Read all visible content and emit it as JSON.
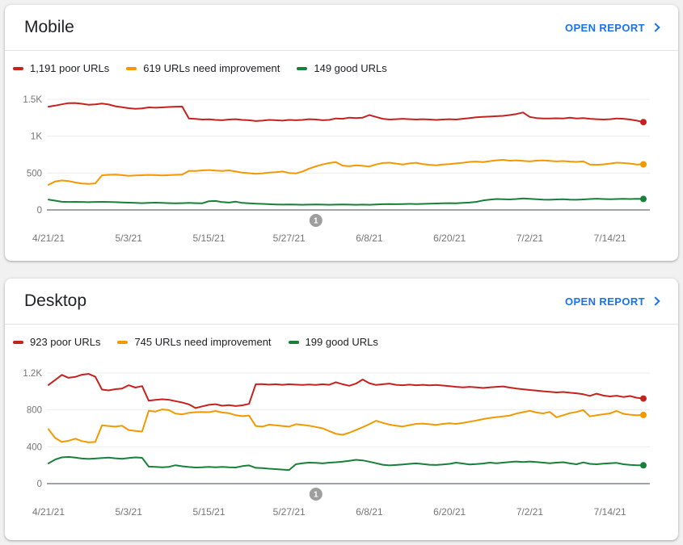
{
  "page": {
    "background": "#f1f1f1"
  },
  "cards": [
    {
      "title": "Mobile",
      "open_report_label": "OPEN REPORT",
      "legend": [
        {
          "label": "1,191 poor URLs",
          "color": "#c5221f"
        },
        {
          "label": "619 URLs need improvement",
          "color": "#f29900"
        },
        {
          "label": "149 good URLs",
          "color": "#188038"
        }
      ]
    },
    {
      "title": "Desktop",
      "open_report_label": "OPEN REPORT",
      "legend": [
        {
          "label": "923 poor URLs",
          "color": "#c5221f"
        },
        {
          "label": "745 URLs need improvement",
          "color": "#f29900"
        },
        {
          "label": "199 good URLs",
          "color": "#188038"
        }
      ]
    }
  ],
  "chart_data": [
    {
      "type": "line",
      "title": "Mobile",
      "x_tick_labels": [
        "4/21/21",
        "5/3/21",
        "5/15/21",
        "5/27/21",
        "6/8/21",
        "6/20/21",
        "7/2/21",
        "7/14/21"
      ],
      "x_tick_day_index": [
        0,
        12,
        24,
        36,
        48,
        60,
        72,
        84
      ],
      "y_tick_labels": [
        "0",
        "500",
        "1K",
        "1.5K"
      ],
      "yticks": [
        0,
        500,
        1000,
        1500
      ],
      "ylim": [
        0,
        1600
      ],
      "grid": true,
      "legend_position": "top",
      "annotation": {
        "label": "1",
        "day_index": 40
      },
      "series": [
        {
          "name": "poor URLs",
          "color": "#c5221f",
          "latest": 1191,
          "values": [
            1400,
            1415,
            1432,
            1448,
            1450,
            1440,
            1426,
            1432,
            1442,
            1430,
            1406,
            1394,
            1380,
            1371,
            1376,
            1390,
            1386,
            1391,
            1396,
            1400,
            1402,
            1240,
            1234,
            1226,
            1230,
            1221,
            1216,
            1226,
            1231,
            1221,
            1216,
            1206,
            1211,
            1221,
            1216,
            1211,
            1221,
            1216,
            1221,
            1231,
            1226,
            1216,
            1221,
            1241,
            1236,
            1251,
            1246,
            1251,
            1286,
            1261,
            1236,
            1226,
            1231,
            1236,
            1231,
            1226,
            1231,
            1226,
            1221,
            1226,
            1231,
            1226,
            1236,
            1246,
            1256,
            1261,
            1266,
            1271,
            1276,
            1286,
            1301,
            1321,
            1261,
            1246,
            1241,
            1239,
            1243,
            1239,
            1251,
            1241,
            1246,
            1236,
            1231,
            1226,
            1231,
            1241,
            1236,
            1226,
            1211,
            1191
          ]
        },
        {
          "name": "URLs need improvement",
          "color": "#f29900",
          "latest": 619,
          "values": [
            340,
            386,
            400,
            392,
            372,
            358,
            354,
            360,
            470,
            476,
            478,
            472,
            462,
            468,
            471,
            475,
            472,
            468,
            472,
            476,
            479,
            530,
            528,
            536,
            541,
            533,
            528,
            536,
            521,
            506,
            498,
            489,
            495,
            506,
            512,
            521,
            501,
            495,
            521,
            561,
            591,
            616,
            636,
            648,
            601,
            592,
            606,
            598,
            589,
            616,
            636,
            641,
            628,
            616,
            631,
            639,
            621,
            612,
            606,
            616,
            622,
            631,
            639,
            651,
            656,
            648,
            661,
            672,
            679,
            668,
            672,
            666,
            658,
            668,
            672,
            666,
            658,
            662,
            656,
            651,
            658,
            616,
            612,
            618,
            628,
            641,
            636,
            628,
            616,
            619
          ]
        },
        {
          "name": "good URLs",
          "color": "#188038",
          "latest": 149,
          "values": [
            140,
            126,
            111,
            108,
            110,
            108,
            105,
            108,
            110,
            108,
            105,
            102,
            98,
            95,
            92,
            95,
            98,
            95,
            92,
            90,
            92,
            95,
            92,
            90,
            118,
            122,
            106,
            100,
            112,
            95,
            90,
            85,
            82,
            78,
            75,
            72,
            75,
            72,
            70,
            72,
            75,
            72,
            70,
            72,
            75,
            72,
            70,
            72,
            70,
            75,
            78,
            80,
            78,
            80,
            82,
            80,
            82,
            85,
            88,
            90,
            92,
            90,
            95,
            100,
            110,
            128,
            140,
            148,
            145,
            142,
            148,
            155,
            150,
            145,
            140,
            138,
            142,
            145,
            140,
            138,
            142,
            148,
            152,
            148,
            145,
            148,
            150,
            148,
            150,
            149
          ]
        }
      ]
    },
    {
      "type": "line",
      "title": "Desktop",
      "x_tick_labels": [
        "4/21/21",
        "5/3/21",
        "5/15/21",
        "5/27/21",
        "6/8/21",
        "6/20/21",
        "7/2/21",
        "7/14/21"
      ],
      "x_tick_day_index": [
        0,
        12,
        24,
        36,
        48,
        60,
        72,
        84
      ],
      "y_tick_labels": [
        "0",
        "400",
        "800",
        "1.2K"
      ],
      "yticks": [
        0,
        400,
        800,
        1200
      ],
      "ylim": [
        0,
        1280
      ],
      "grid": true,
      "legend_position": "top",
      "annotation": {
        "label": "1",
        "day_index": 40
      },
      "series": [
        {
          "name": "poor URLs",
          "color": "#c5221f",
          "latest": 923,
          "values": [
            1070,
            1125,
            1180,
            1148,
            1158,
            1182,
            1190,
            1160,
            1020,
            1012,
            1025,
            1032,
            1068,
            1042,
            1058,
            900,
            908,
            915,
            910,
            895,
            880,
            860,
            820,
            838,
            855,
            862,
            845,
            852,
            842,
            850,
            865,
            1078,
            1080,
            1074,
            1078,
            1072,
            1078,
            1074,
            1070,
            1076,
            1070,
            1078,
            1072,
            1100,
            1078,
            1062,
            1085,
            1130,
            1090,
            1070,
            1078,
            1085,
            1072,
            1068,
            1074,
            1068,
            1072,
            1066,
            1070,
            1064,
            1058,
            1050,
            1044,
            1050,
            1044,
            1038,
            1044,
            1050,
            1055,
            1042,
            1032,
            1024,
            1016,
            1010,
            1002,
            996,
            990,
            994,
            986,
            980,
            970,
            952,
            976,
            956,
            946,
            954,
            940,
            950,
            932,
            923
          ]
        },
        {
          "name": "URLs need improvement",
          "color": "#f29900",
          "latest": 745,
          "values": [
            590,
            495,
            452,
            465,
            488,
            462,
            448,
            452,
            632,
            625,
            618,
            628,
            582,
            572,
            565,
            790,
            782,
            805,
            798,
            760,
            752,
            768,
            775,
            778,
            775,
            788,
            772,
            765,
            742,
            732,
            738,
            625,
            618,
            640,
            632,
            625,
            618,
            645,
            638,
            628,
            615,
            600,
            570,
            540,
            530,
            552,
            582,
            612,
            645,
            682,
            660,
            640,
            628,
            620,
            635,
            648,
            652,
            645,
            638,
            648,
            655,
            648,
            660,
            672,
            685,
            700,
            712,
            722,
            730,
            738,
            760,
            775,
            790,
            772,
            762,
            778,
            720,
            742,
            765,
            778,
            798,
            730,
            742,
            752,
            762,
            788,
            758,
            748,
            742,
            745
          ]
        },
        {
          "name": "good URLs",
          "color": "#188038",
          "latest": 199,
          "values": [
            220,
            262,
            285,
            290,
            282,
            272,
            268,
            272,
            278,
            282,
            275,
            270,
            278,
            285,
            280,
            185,
            182,
            178,
            182,
            200,
            188,
            180,
            175,
            178,
            182,
            178,
            182,
            178,
            175,
            190,
            198,
            172,
            168,
            162,
            158,
            152,
            148,
            210,
            222,
            228,
            225,
            220,
            228,
            232,
            238,
            248,
            258,
            252,
            238,
            222,
            205,
            198,
            202,
            208,
            215,
            220,
            212,
            205,
            202,
            208,
            215,
            228,
            218,
            208,
            212,
            218,
            228,
            222,
            228,
            235,
            240,
            235,
            240,
            234,
            228,
            222,
            228,
            232,
            220,
            210,
            230,
            215,
            210,
            216,
            222,
            225,
            210,
            204,
            200,
            199
          ]
        }
      ]
    }
  ]
}
